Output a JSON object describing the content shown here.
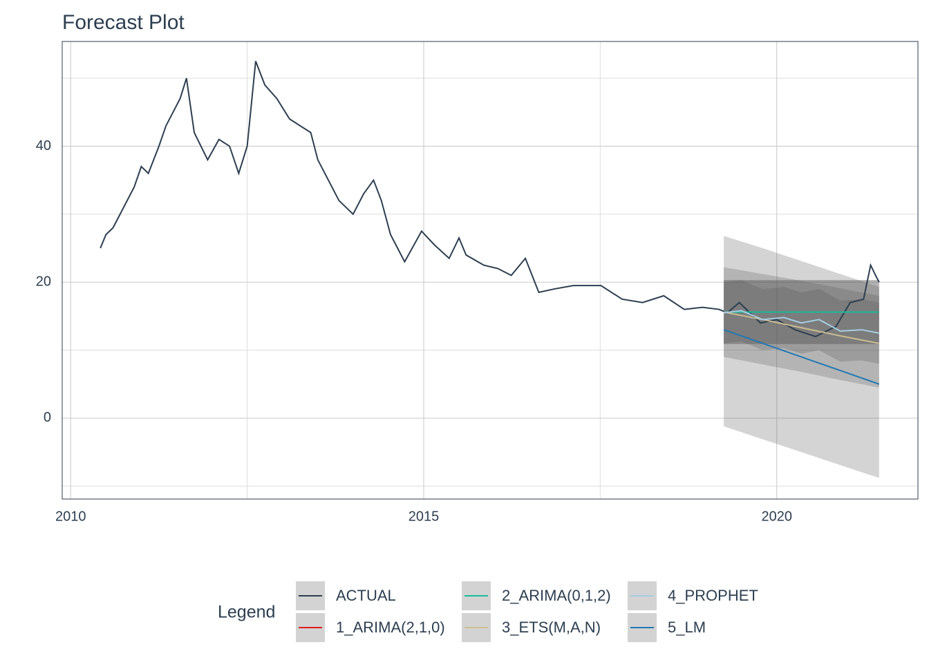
{
  "chart_data": {
    "type": "line",
    "title": "Forecast Plot",
    "xlim": [
      2009.88,
      2022.0
    ],
    "xticks": [
      2010,
      2015,
      2020
    ],
    "x_minor_grid": [
      2012.5,
      2017.5
    ],
    "ylim": [
      -11.9,
      55.4
    ],
    "yticks": [
      0,
      20,
      40
    ],
    "y_minor_grid": [
      -10,
      10,
      30,
      50
    ],
    "grid": true,
    "legend_title": "Legend",
    "legend_position": "bottom",
    "series": [
      {
        "name": "ACTUAL",
        "color": "#2c3e50",
        "x": [
          2010.42,
          2010.5,
          2010.6,
          2010.75,
          2010.9,
          2011.0,
          2011.1,
          2011.25,
          2011.35,
          2011.45,
          2011.55,
          2011.64,
          2011.75,
          2011.94,
          2012.1,
          2012.25,
          2012.38,
          2012.5,
          2012.62,
          2012.75,
          2012.92,
          2013.1,
          2013.25,
          2013.4,
          2013.5,
          2013.6,
          2013.8,
          2014.0,
          2014.15,
          2014.29,
          2014.4,
          2014.53,
          2014.73,
          2014.97,
          2015.15,
          2015.36,
          2015.5,
          2015.6,
          2015.85,
          2016.05,
          2016.24,
          2016.44,
          2016.63,
          2016.85,
          2017.12,
          2017.3,
          2017.51,
          2017.81,
          2018.1,
          2018.4,
          2018.69,
          2018.95,
          2019.18,
          2019.3,
          2019.47,
          2019.77,
          2020.0,
          2020.26,
          2020.55,
          2020.84,
          2021.04,
          2021.23,
          2021.33,
          2021.4,
          2021.45
        ],
        "values": [
          25,
          27,
          28,
          31,
          34,
          37,
          36,
          40,
          43,
          45,
          47,
          50,
          42,
          38,
          41,
          40,
          36,
          40,
          52.5,
          49,
          47,
          44,
          43,
          42,
          38,
          36,
          32,
          30,
          33,
          35,
          32,
          27,
          23,
          27.5,
          25.5,
          23.5,
          26.5,
          24,
          22.5,
          22,
          21,
          23.5,
          18.5,
          19,
          19.5,
          19.5,
          19.5,
          17.5,
          17,
          18,
          16,
          16.3,
          16,
          15.5,
          17,
          14,
          14.5,
          13,
          12,
          13.5,
          17,
          17.5,
          22.5,
          21,
          20
        ]
      },
      {
        "name": "1_ARIMA(2,1,0)",
        "color": "#e31a1c",
        "x": [
          2019.25,
          2019.8,
          2020.35,
          2020.9,
          2021.45
        ],
        "values": [
          15.6,
          15.6,
          15.6,
          15.6,
          15.6
        ],
        "lo": [
          10.9,
          10.9,
          10.9,
          10.9,
          10.9
        ],
        "hi": [
          20.3,
          20.3,
          20.3,
          20.3,
          20.3
        ]
      },
      {
        "name": "2_ARIMA(0,1,2)",
        "color": "#18bc9c",
        "x": [
          2019.25,
          2019.8,
          2020.35,
          2020.9,
          2021.45
        ],
        "values": [
          15.6,
          15.6,
          15.6,
          15.6,
          15.6
        ],
        "lo": [
          10.9,
          10.9,
          10.9,
          10.9,
          10.9
        ],
        "hi": [
          20.3,
          20.3,
          20.3,
          20.3,
          20.3
        ]
      },
      {
        "name": "3_ETS(M,A,N)",
        "color": "#ccbe93",
        "x": [
          2019.25,
          2019.8,
          2020.35,
          2020.9,
          2021.45
        ],
        "values": [
          15.6,
          14.5,
          13.3,
          12.1,
          11
        ],
        "lo": [
          9,
          7.9,
          6.8,
          5.6,
          4.5
        ],
        "hi": [
          22.2,
          21.2,
          20.2,
          19.1,
          18
        ]
      },
      {
        "name": "4_PROPHET",
        "color": "#a6cee3",
        "x": [
          2019.25,
          2019.5,
          2019.8,
          2020.1,
          2020.35,
          2020.6,
          2020.9,
          2021.2,
          2021.45
        ],
        "values": [
          15.5,
          15.8,
          14.5,
          14.8,
          14,
          14.5,
          12.8,
          13,
          12.5
        ],
        "lo": [
          11,
          11.3,
          10,
          10.3,
          9.5,
          10,
          8.3,
          8.5,
          8
        ],
        "hi": [
          20,
          20.3,
          19,
          19.3,
          18.5,
          19,
          17.3,
          17.5,
          17
        ]
      },
      {
        "name": "5_LM",
        "color": "#1f78b4",
        "x": [
          2019.25,
          2019.8,
          2020.35,
          2020.9,
          2021.45
        ],
        "values": [
          13,
          11,
          9,
          7,
          5
        ],
        "lo": [
          -1.2,
          -3.1,
          -5,
          -6.9,
          -8.8
        ],
        "hi": [
          26.8,
          25,
          23.1,
          21.2,
          19.3
        ]
      }
    ]
  }
}
